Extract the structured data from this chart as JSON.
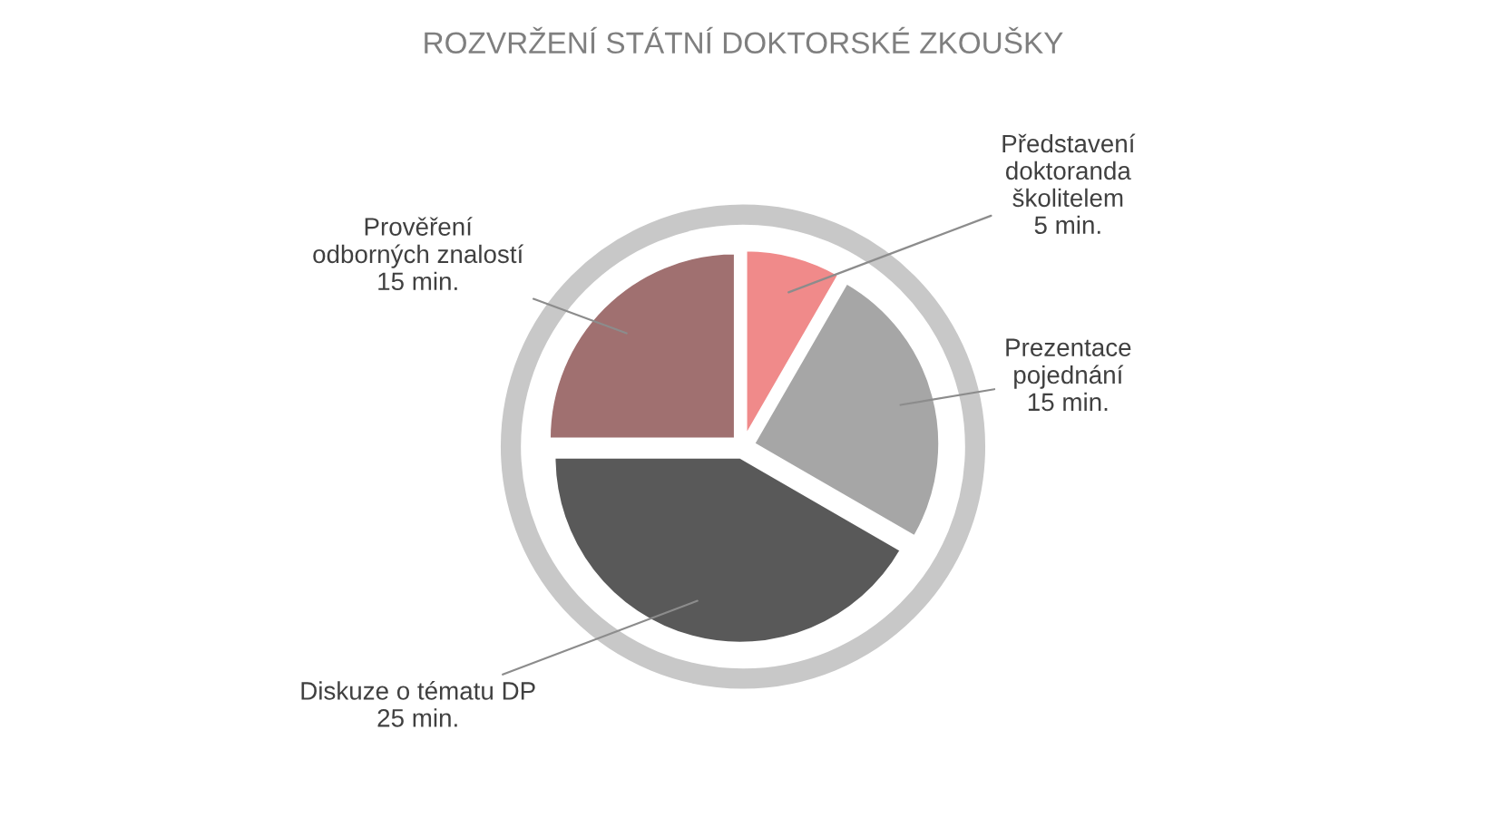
{
  "chart_data": {
    "type": "pie",
    "title": "ROZVRŽENÍ STÁTNÍ DOKTORSKÉ ZKOUŠKY",
    "categories": [
      "Představení\ndoktoranda\nškolitelem",
      "Prezentace\npojednání",
      "Diskuze o tématu DP",
      "Prověření\nodborných znalostí"
    ],
    "values": [
      5,
      15,
      25,
      15
    ],
    "value_labels": [
      "5 min.",
      "15 min.",
      "25 min.",
      "15 min."
    ],
    "colors": [
      "#f08a8a",
      "#a6a6a6",
      "#595959",
      "#a07070"
    ],
    "legend": false
  }
}
